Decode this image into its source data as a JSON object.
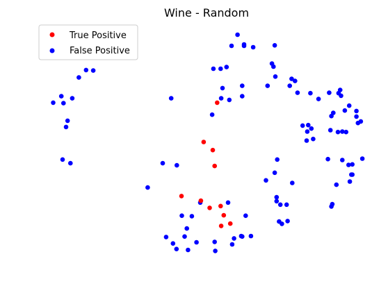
{
  "chart_data": {
    "type": "scatter",
    "title": "Wine - Random",
    "xlabel": "",
    "ylabel": "",
    "axes_visible": false,
    "grid": false,
    "legend": {
      "placement": "top-left"
    },
    "xlim": [
      0,
      100
    ],
    "ylim": [
      0,
      100
    ],
    "series": [
      {
        "name": "True Positive",
        "color": "#ff0000",
        "points": [
          [
            53.4,
            70.6
          ],
          [
            49.1,
            53.6
          ],
          [
            52.0,
            50.1
          ],
          [
            52.6,
            43.2
          ],
          [
            42.0,
            30.2
          ],
          [
            48.2,
            28.2
          ],
          [
            51.0,
            25.1
          ],
          [
            54.5,
            25.9
          ],
          [
            55.5,
            21.9
          ],
          [
            57.6,
            18.3
          ],
          [
            54.7,
            17.3
          ]
        ]
      },
      {
        "name": "False Positive",
        "color": "#0000ff",
        "points": [
          [
            59.9,
            100.0
          ],
          [
            62.0,
            95.8
          ],
          [
            62.0,
            95.2
          ],
          [
            71.8,
            95.4
          ],
          [
            58.0,
            95.2
          ],
          [
            64.9,
            94.6
          ],
          [
            56.4,
            86.0
          ],
          [
            52.2,
            85.3
          ],
          [
            54.5,
            85.3
          ],
          [
            70.9,
            87.5
          ],
          [
            71.4,
            86.2
          ],
          [
            13.8,
            84.5
          ],
          [
            11.5,
            84.7
          ],
          [
            9.2,
            81.5
          ],
          [
            72.0,
            81.9
          ],
          [
            77.2,
            80.9
          ],
          [
            78.3,
            80.0
          ],
          [
            61.4,
            77.9
          ],
          [
            69.5,
            77.9
          ],
          [
            55.1,
            76.9
          ],
          [
            76.6,
            77.9
          ],
          [
            92.7,
            76.1
          ],
          [
            92.2,
            74.7
          ],
          [
            79.1,
            74.9
          ],
          [
            83.2,
            74.7
          ],
          [
            89.2,
            74.9
          ],
          [
            93.0,
            73.6
          ],
          [
            3.6,
            73.4
          ],
          [
            7.1,
            72.5
          ],
          [
            1.0,
            70.6
          ],
          [
            38.7,
            72.5
          ],
          [
            54.7,
            72.5
          ],
          [
            61.4,
            73.4
          ],
          [
            57.3,
            71.8
          ],
          [
            4.3,
            70.4
          ],
          [
            85.8,
            72.2
          ],
          [
            95.6,
            69.3
          ],
          [
            97.9,
            67.0
          ],
          [
            94.2,
            67.2
          ],
          [
            90.5,
            66.2
          ],
          [
            89.9,
            64.8
          ],
          [
            97.9,
            64.6
          ],
          [
            99.3,
            62.5
          ],
          [
            98.4,
            61.8
          ],
          [
            5.6,
            62.8
          ],
          [
            5.1,
            60.1
          ],
          [
            82.5,
            60.9
          ],
          [
            80.7,
            60.7
          ],
          [
            83.5,
            59.4
          ],
          [
            51.8,
            65.4
          ],
          [
            89.6,
            58.7
          ],
          [
            93.4,
            58.1
          ],
          [
            82.2,
            58.1
          ],
          [
            92.0,
            57.9
          ],
          [
            94.6,
            57.9
          ],
          [
            82.0,
            54.2
          ],
          [
            84.1,
            54.9
          ],
          [
            88.8,
            46.2
          ],
          [
            72.6,
            46.0
          ],
          [
            93.4,
            45.8
          ],
          [
            99.8,
            46.4
          ],
          [
            95.4,
            43.7
          ],
          [
            96.6,
            43.9
          ],
          [
            4.0,
            46.0
          ],
          [
            6.5,
            44.4
          ],
          [
            36.0,
            44.4
          ],
          [
            40.5,
            43.5
          ],
          [
            71.8,
            40.3
          ],
          [
            96.3,
            39.5
          ],
          [
            96.6,
            39.5
          ],
          [
            69.0,
            37.0
          ],
          [
            77.4,
            35.9
          ],
          [
            31.2,
            33.9
          ],
          [
            95.8,
            36.5
          ],
          [
            91.5,
            35.1
          ],
          [
            48.0,
            27.4
          ],
          [
            56.9,
            27.4
          ],
          [
            72.4,
            28.0
          ],
          [
            72.4,
            29.7
          ],
          [
            90.2,
            26.7
          ],
          [
            89.9,
            25.7
          ],
          [
            73.6,
            26.5
          ],
          [
            75.6,
            26.5
          ],
          [
            45.3,
            21.5
          ],
          [
            42.1,
            21.7
          ],
          [
            62.5,
            21.7
          ],
          [
            73.2,
            19.2
          ],
          [
            74.1,
            18.2
          ],
          [
            75.9,
            19.4
          ],
          [
            43.7,
            16.2
          ],
          [
            43.0,
            12.7
          ],
          [
            61.1,
            12.9
          ],
          [
            64.2,
            12.9
          ],
          [
            58.8,
            11.9
          ],
          [
            37.1,
            12.5
          ],
          [
            61.4,
            12.7
          ],
          [
            46.8,
            10.2
          ],
          [
            52.6,
            10.4
          ],
          [
            39.3,
            9.7
          ],
          [
            58.2,
            9.3
          ],
          [
            40.4,
            7.3
          ],
          [
            44.1,
            6.9
          ],
          [
            52.8,
            6.5
          ]
        ]
      }
    ]
  }
}
